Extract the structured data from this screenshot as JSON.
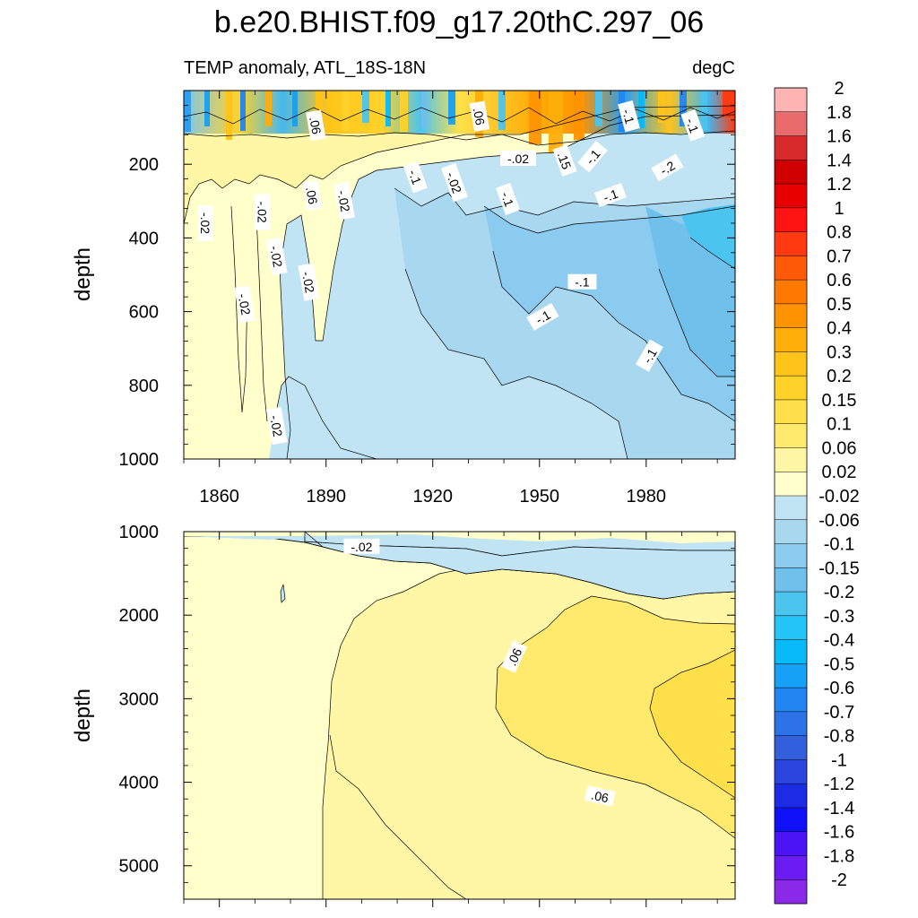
{
  "title": "b.e20.BHIST.f09_g17.20thC.297_06",
  "colors": {
    "levels": [
      "-2",
      "-1.8",
      "-1.6",
      "-1.4",
      "-1.2",
      "-1",
      "-0.8",
      "-0.7",
      "-0.6",
      "-0.5",
      "-0.4",
      "-0.3",
      "-0.2",
      "-0.15",
      "-0.1",
      "-0.06",
      "-0.02",
      "0.02",
      "0.06",
      "0.1",
      "0.15",
      "0.2",
      "0.3",
      "0.4",
      "0.5",
      "0.6",
      "0.7",
      "0.8",
      "1",
      "1.2",
      "1.4",
      "1.6",
      "1.8",
      "2"
    ],
    "fills": [
      "#8a2ae8",
      "#6a1cf2",
      "#4a14f4",
      "#1010f8",
      "#1c2ce6",
      "#2a46de",
      "#3260dc",
      "#2d72e6",
      "#2286f2",
      "#16a0f6",
      "#08baf8",
      "#24c4f8",
      "#4cc4f0",
      "#70c0ec",
      "#8ccbf0",
      "#a8d8f0",
      "#c0e4f4",
      "#ffffcc",
      "#fff6a6",
      "#ffea6e",
      "#ffe04a",
      "#ffd22a",
      "#ffc41a",
      "#ffae0a",
      "#ff9400",
      "#ff7800",
      "#ff5a08",
      "#ff3a10",
      "#ff1414",
      "#e80000",
      "#d00000",
      "#d82a2a",
      "#e86a6a",
      "#ffb4b4"
    ]
  },
  "chart_data": [
    {
      "type": "heatmap",
      "panel": "upper",
      "left_title": "TEMP anomaly, ATL_18S-18N",
      "right_title": "degC",
      "ylabel": "depth",
      "xlabel": "",
      "xlim": [
        1850,
        2005
      ],
      "ylim": [
        1000,
        0
      ],
      "xticks": [
        1860,
        1890,
        1920,
        1950,
        1980
      ],
      "xtick_labels": [
        "1860",
        "1890",
        "1920",
        "1950",
        "1980"
      ],
      "yticks": [
        200,
        400,
        600,
        800,
        1000
      ],
      "ytick_labels": [
        "200",
        "400",
        "600",
        "800",
        "1000"
      ],
      "contour_labels": [
        {
          "text": ".06",
          "year": 1887,
          "depth": 95,
          "angle": 80
        },
        {
          "text": ".06",
          "year": 1933,
          "depth": 70,
          "angle": 80
        },
        {
          "text": "-.1",
          "year": 1975,
          "depth": 70,
          "angle": 75
        },
        {
          "text": "-.1",
          "year": 1993,
          "depth": 95,
          "angle": 70
        },
        {
          "text": "-.02",
          "year": 1944,
          "depth": 185,
          "angle": 0
        },
        {
          "text": ".15",
          "year": 1957,
          "depth": 190,
          "angle": 70
        },
        {
          "text": "-.1",
          "year": 1965,
          "depth": 180,
          "angle": -50
        },
        {
          "text": "-.2",
          "year": 1986,
          "depth": 210,
          "angle": -30
        },
        {
          "text": "-.1",
          "year": 1915,
          "depth": 235,
          "angle": 70
        },
        {
          "text": "-.02",
          "year": 1926,
          "depth": 250,
          "angle": 70
        },
        {
          "text": ".06",
          "year": 1886,
          "depth": 285,
          "angle": 80
        },
        {
          "text": "-.02",
          "year": 1895,
          "depth": 300,
          "angle": 80
        },
        {
          "text": "-.1",
          "year": 1941,
          "depth": 295,
          "angle": 70
        },
        {
          "text": "-.1",
          "year": 1970,
          "depth": 285,
          "angle": -20
        },
        {
          "text": "-.02",
          "year": 1872,
          "depth": 330,
          "angle": 90
        },
        {
          "text": "-.02",
          "year": 1856,
          "depth": 360,
          "angle": 90
        },
        {
          "text": "-.02",
          "year": 1876,
          "depth": 450,
          "angle": 80
        },
        {
          "text": "-.02",
          "year": 1885,
          "depth": 520,
          "angle": 80
        },
        {
          "text": "-.1",
          "year": 1962,
          "depth": 520,
          "angle": 0
        },
        {
          "text": "-.02",
          "year": 1867,
          "depth": 580,
          "angle": 80
        },
        {
          "text": "-.1",
          "year": 1951,
          "depth": 615,
          "angle": -30
        },
        {
          "text": "-.1",
          "year": 1981,
          "depth": 720,
          "angle": -60
        },
        {
          "text": "-.02",
          "year": 1876,
          "depth": 910,
          "angle": 80
        }
      ]
    },
    {
      "type": "heatmap",
      "panel": "lower",
      "ylabel": "depth",
      "xlabel": "",
      "xlim": [
        1850,
        2005
      ],
      "ylim": [
        5400,
        1000
      ],
      "yticks": [
        1000,
        2000,
        3000,
        4000,
        5000
      ],
      "ytick_labels": [
        "1000",
        "2000",
        "3000",
        "4000",
        "5000"
      ],
      "contour_labels": [
        {
          "text": "-.02",
          "year": 1900,
          "depth": 1180,
          "angle": 0
        },
        {
          "text": ".06",
          "year": 1943,
          "depth": 2500,
          "angle": -65
        },
        {
          "text": ".06",
          "year": 1967,
          "depth": 4170,
          "angle": 12
        }
      ]
    }
  ]
}
